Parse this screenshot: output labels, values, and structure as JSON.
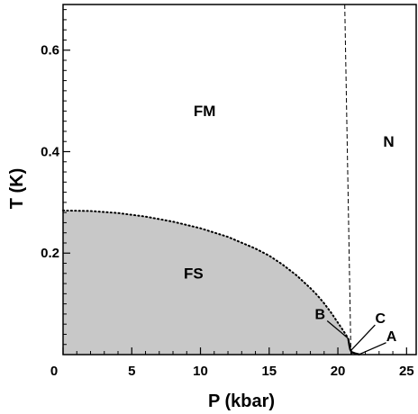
{
  "chart_data": {
    "type": "area",
    "title": "",
    "xlabel": "P (kbar)",
    "ylabel": "T (K)",
    "xlim": [
      0,
      25.7
    ],
    "ylim": [
      0,
      0.69
    ],
    "x_ticks": [
      0,
      5,
      10,
      15,
      20,
      25
    ],
    "x_tick_labels": [
      "0",
      "5",
      "10",
      "15",
      "20",
      "25"
    ],
    "y_ticks": [
      0.2,
      0.4,
      0.6
    ],
    "y_tick_labels": [
      "0.2",
      "0.4",
      "0.6"
    ],
    "x_minor_step": 1,
    "y_minor_step": 0.02,
    "grid": false,
    "series": [
      {
        "style": "dotted",
        "fill": "#c8c8c8",
        "x": [
          0,
          2,
          4,
          6,
          8,
          10,
          12,
          14,
          15,
          16,
          17,
          18,
          18.5,
          19,
          19.5,
          20,
          20.4,
          20.75
        ],
        "y": [
          0.284,
          0.283,
          0.279,
          0.272,
          0.262,
          0.249,
          0.232,
          0.209,
          0.195,
          0.177,
          0.156,
          0.131,
          0.117,
          0.101,
          0.083,
          0.063,
          0.047,
          0.032
        ]
      },
      {
        "style": "solid",
        "x": [
          20.75,
          20.8,
          20.85,
          20.9,
          21.0,
          21.3,
          21.6
        ],
        "y": [
          0.032,
          0.024,
          0.016,
          0.01,
          0.005,
          0.002,
          0.0
        ]
      },
      {
        "style": "dashed",
        "x": [
          20.5,
          20.95
        ],
        "y": [
          0.69,
          0.0
        ]
      }
    ],
    "regions": [
      {
        "label": "FM",
        "x": 10.3,
        "y": 0.47
      },
      {
        "label": "N",
        "x": 23.7,
        "y": 0.41
      },
      {
        "label": "FS",
        "x": 9.5,
        "y": 0.15
      }
    ],
    "points": [
      {
        "label": "B",
        "x": 20.75,
        "y": 0.032,
        "label_x": 18.7,
        "label_y": 0.07
      },
      {
        "label": "C",
        "x": 20.95,
        "y": 0.008,
        "label_x": 23.1,
        "label_y": 0.062
      },
      {
        "label": "A",
        "x": 21.6,
        "y": 0.001,
        "label_x": 23.9,
        "label_y": 0.027
      }
    ]
  }
}
